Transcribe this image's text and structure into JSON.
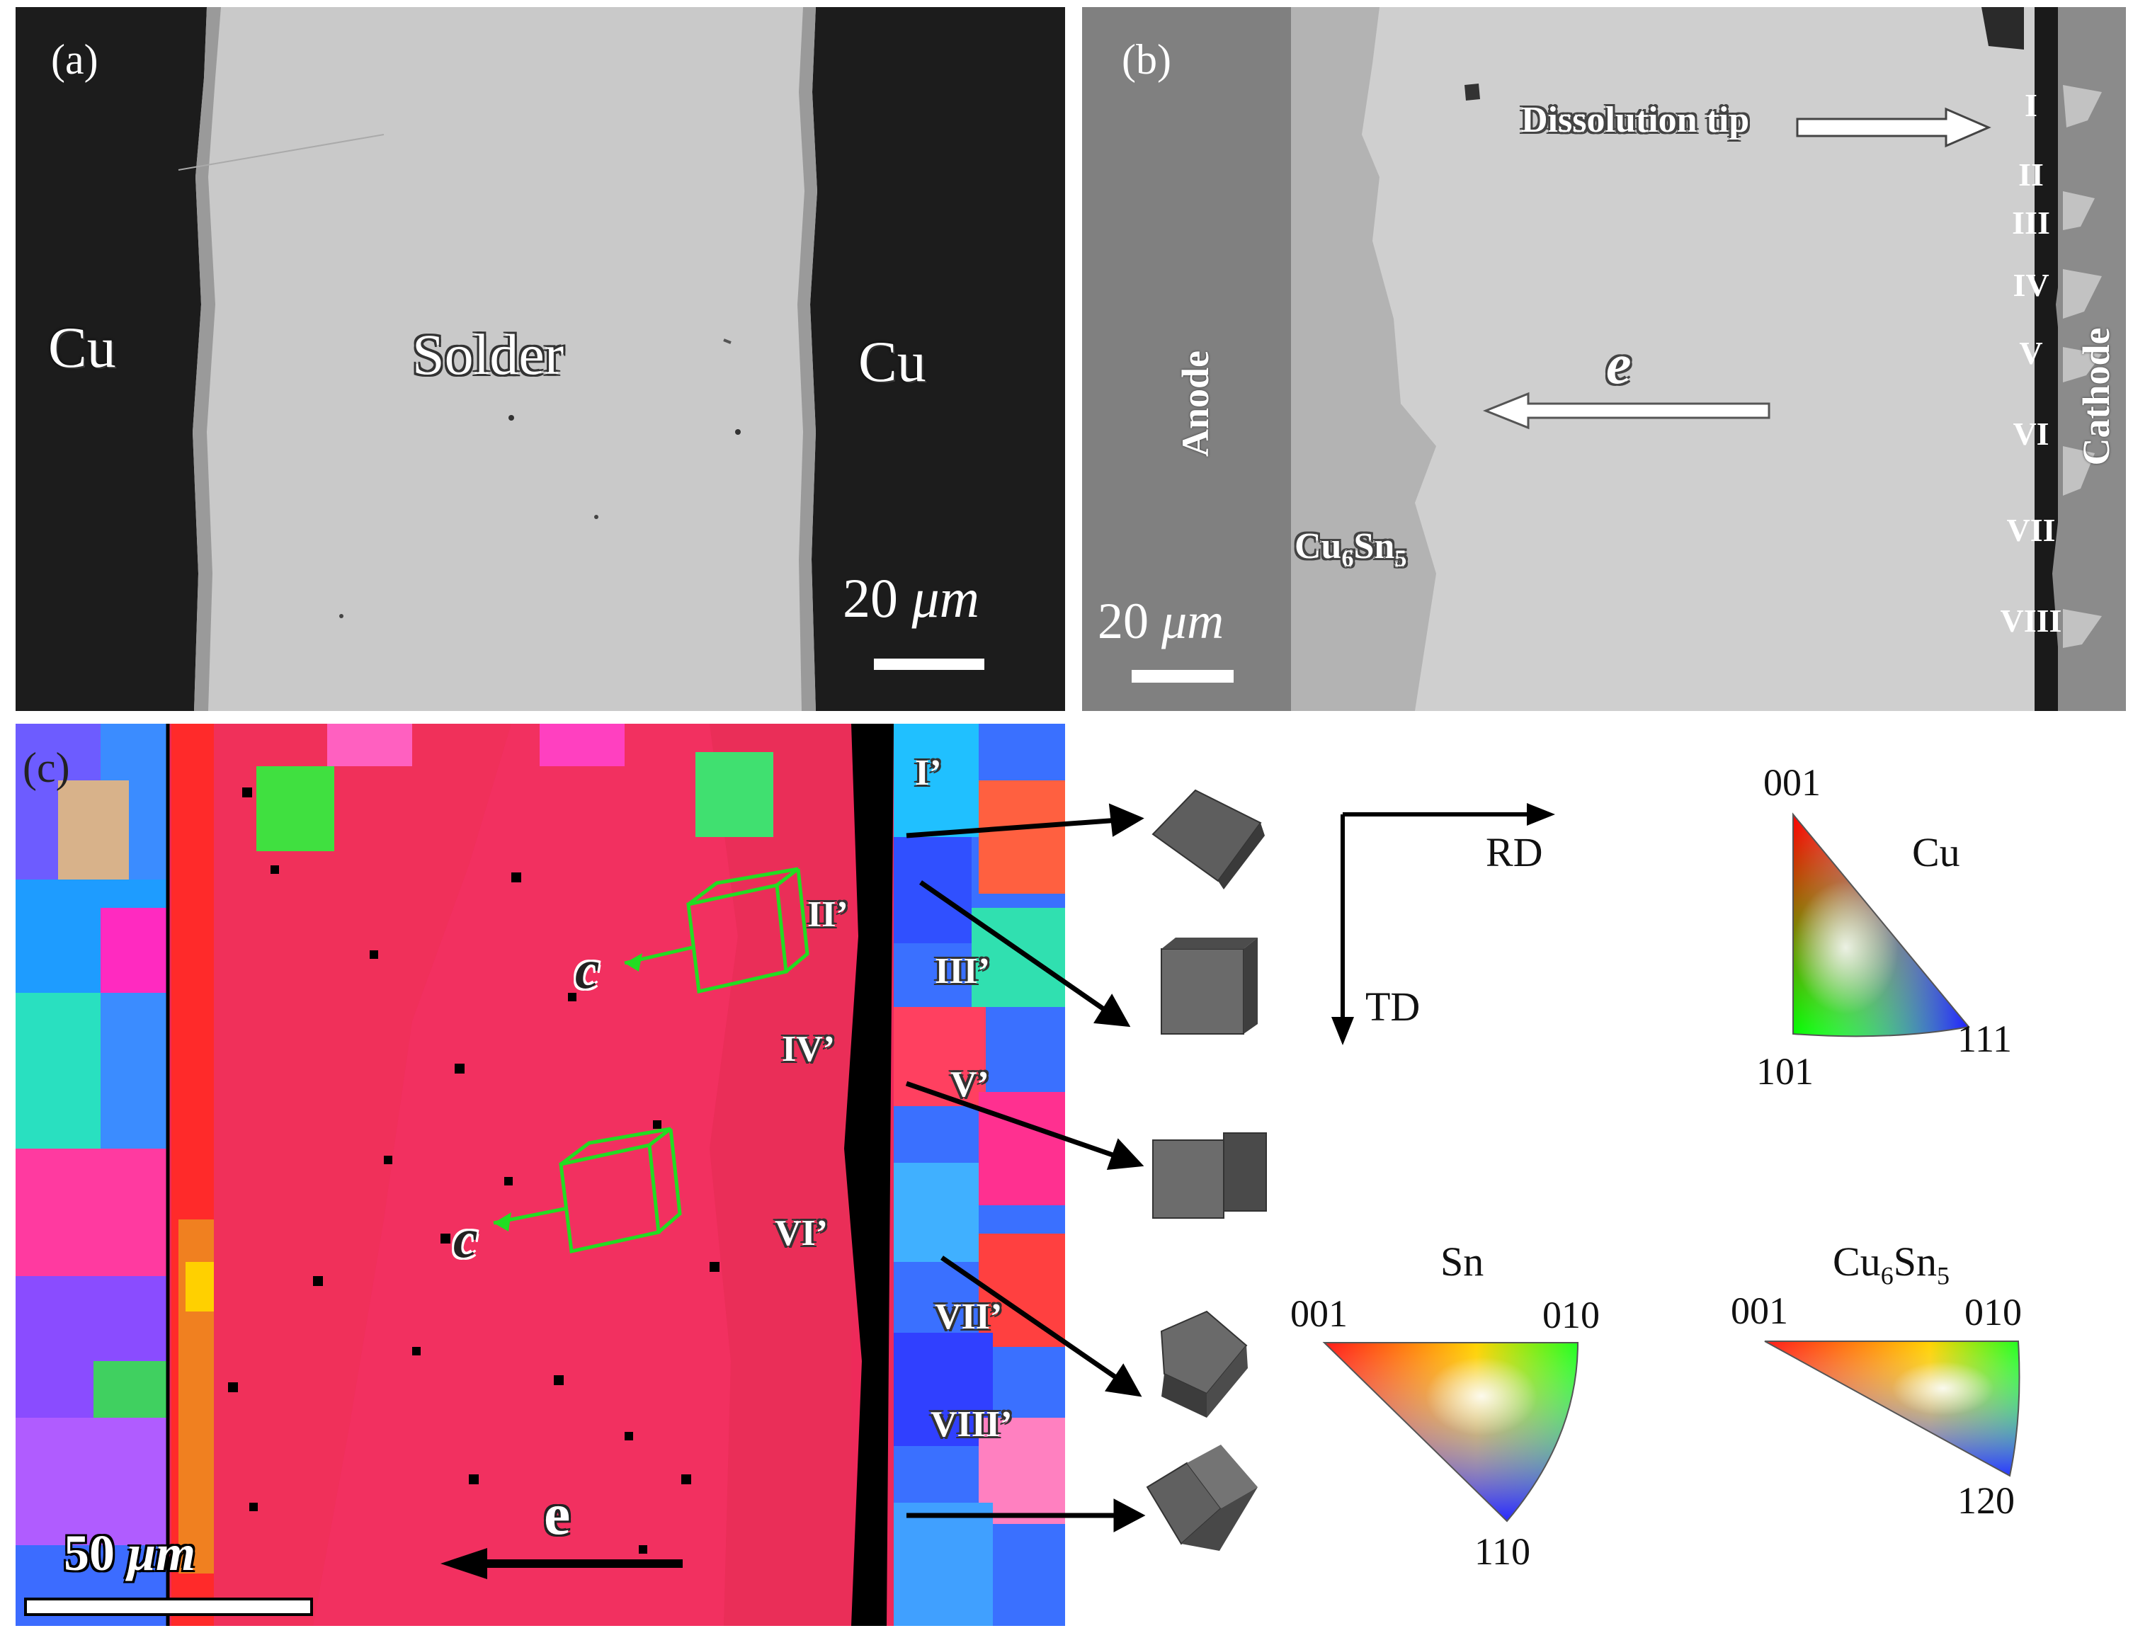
{
  "panel_a": {
    "tag": "(a)",
    "left_metal": "Cu",
    "center_material": "Solder",
    "right_metal": "Cu",
    "scale_value": "20",
    "scale_unit": "μm"
  },
  "panel_b": {
    "tag": "(b)",
    "anode": "Anode",
    "cathode": "Cathode",
    "annotation": "Dissolution tip",
    "imc_base": "Cu",
    "imc_sub1": "6",
    "imc_mid": "Sn",
    "imc_sub2": "5",
    "electron": "e",
    "regions": [
      "I",
      "II",
      "III",
      "IV",
      "V",
      "VI",
      "VII",
      "VIII"
    ],
    "scale_value": "20",
    "scale_unit": "μm"
  },
  "panel_c": {
    "tag": "(c)",
    "regions": [
      "I’",
      "II’",
      "III’",
      "IV’",
      "V’",
      "VI’",
      "VII’",
      "VIII’"
    ],
    "c_axis": "c",
    "electron": "e",
    "scale_value": "50",
    "scale_unit": "μm"
  },
  "axes": {
    "rd": "RD",
    "td": "TD"
  },
  "ipf": {
    "cu": {
      "title": "Cu",
      "top": "001",
      "bottom_left": "101",
      "bottom_right": "111"
    },
    "sn": {
      "title": "Sn",
      "left": "001",
      "right": "010",
      "bottom": "110"
    },
    "cu6sn5": {
      "title_base": "Cu",
      "title_sub1": "6",
      "title_mid": "Sn",
      "title_sub2": "5",
      "left": "001",
      "right": "010",
      "bottom": "120"
    }
  },
  "colors": {
    "cu_dark": "#1c1c1c",
    "solder": "#c8c8c8",
    "ipf_red": "#ee2a5a",
    "marker_green": "#22dd22"
  }
}
